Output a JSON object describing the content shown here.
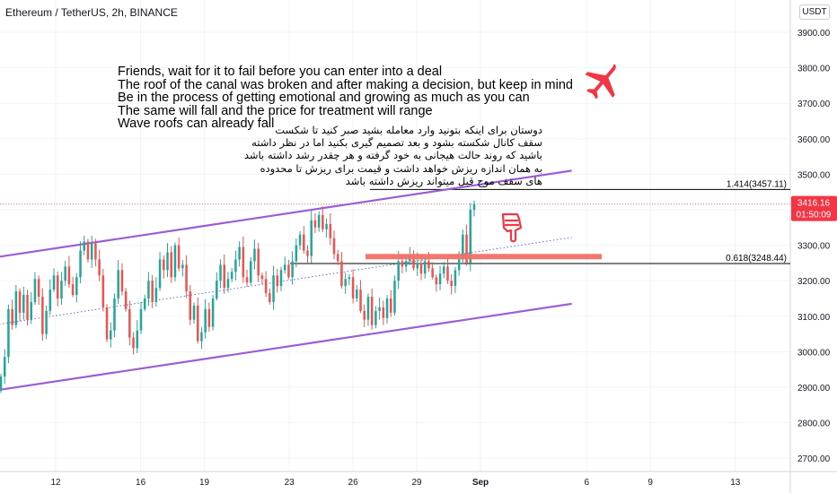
{
  "header": {
    "symbol_title": "Ethereum / TetherUS, 2h, BINANCE",
    "currency": "USDT"
  },
  "annotations": {
    "english_lines": [
      "Friends, wait for it to fail before you can enter into a deal",
      "The roof of the canal was broken and after making a decision, but keep in mind",
      "Be in the process of getting emotional and growing as much as you can",
      "The same will fall and the price for treatment will range",
      "Wave roofs can already fall"
    ],
    "persian_lines": [
      "دوستان برای اینکه بتونید وارد معامله بشید صبر کنید تا شکست",
      "سقف کانال شکسته بشود و بعد تصمیم گیری بکنید اما در نظر داشته",
      "باشید که روند حالت هیجانی به خود گرفته و هر چقدر رشد داشته باشد",
      "به همان اندازه ریزش خواهد داشت و قیمت برای ریزش تا محدوده",
      "های سقف موج قبل میتواند ریزش داشته باشد"
    ],
    "airplane_icon": "airplane-icon",
    "hand_icon": "pointing-down-hand-icon",
    "icon_color": "#f23645"
  },
  "chart_data": {
    "type": "candlestick",
    "x_ticks": [
      "12",
      "16",
      "19",
      "23",
      "26",
      "29",
      "Sep",
      "6",
      "9",
      "13"
    ],
    "y_ticks": [
      2700,
      2800,
      2900,
      3000,
      3100,
      3200,
      3300,
      3400,
      3500,
      3600,
      3700,
      3800,
      3900
    ],
    "y_tick_labels": [
      "2700.00",
      "2800.00",
      "2900.00",
      "3000.00",
      "3100.00",
      "3200.00",
      "3300.00",
      "3400.00",
      "3500.00",
      "3600.00",
      "3700.00",
      "3800.00",
      "3900.00"
    ],
    "ylim": [
      2650,
      3950
    ],
    "last_price": {
      "value": 3416.16,
      "label": "3416.16",
      "countdown": "01:50:09",
      "color": "#f23645"
    },
    "fib_levels": [
      {
        "value": 3457.11,
        "label": "1.414(3457.11)"
      },
      {
        "value": 3248.44,
        "label": "0.618(3248.44)"
      }
    ],
    "resistance_zone": {
      "value": 3268,
      "color": "#f07167"
    },
    "channel": {
      "color": "#9c5cd4",
      "upper": {
        "from": {
          "day": 8.5,
          "value": 3260
        },
        "to": {
          "day": 36.3,
          "value": 3510
        }
      },
      "lower": {
        "from": {
          "day": 8.5,
          "value": 2885
        },
        "to": {
          "day": 36.3,
          "value": 3135
        }
      },
      "mid": {
        "from": {
          "day": 8.5,
          "value": 3070
        },
        "to": {
          "day": 36.3,
          "value": 3322
        }
      }
    },
    "candle_colors": {
      "up": "#26a69a",
      "down": "#ef5350"
    },
    "closes": [
      2930,
      2985,
      3120,
      3075,
      3170,
      3110,
      3160,
      3090,
      3140,
      3205,
      3155,
      3050,
      3115,
      3175,
      3215,
      3150,
      3200,
      3240,
      3190,
      3160,
      3210,
      3285,
      3310,
      3260,
      3305,
      3260,
      3215,
      3125,
      3035,
      3060,
      3150,
      3230,
      3170,
      3120,
      3040,
      3010,
      3060,
      3120,
      3150,
      3200,
      3140,
      3180,
      3260,
      3230,
      3280,
      3210,
      3300,
      3235,
      3245,
      3170,
      3090,
      3130,
      3030,
      3055,
      3120,
      3070,
      3150,
      3200,
      3245,
      3180,
      3205,
      3225,
      3260,
      3295,
      3210,
      3195,
      3255,
      3290,
      3215,
      3205,
      3165,
      3140,
      3215,
      3185,
      3230,
      3245,
      3210,
      3255,
      3300,
      3330,
      3285,
      3270,
      3370,
      3350,
      3385,
      3345,
      3360,
      3320,
      3275,
      3255,
      3185,
      3205,
      3210,
      3150,
      3175,
      3115,
      3090,
      3155,
      3075,
      3115,
      3125,
      3095,
      3150,
      3110,
      3200,
      3255,
      3240,
      3255,
      3270,
      3235,
      3250,
      3220,
      3255,
      3235,
      3210,
      3190,
      3220,
      3240,
      3200,
      3185,
      3230,
      3260,
      3330,
      3250,
      3400,
      3416
    ]
  }
}
